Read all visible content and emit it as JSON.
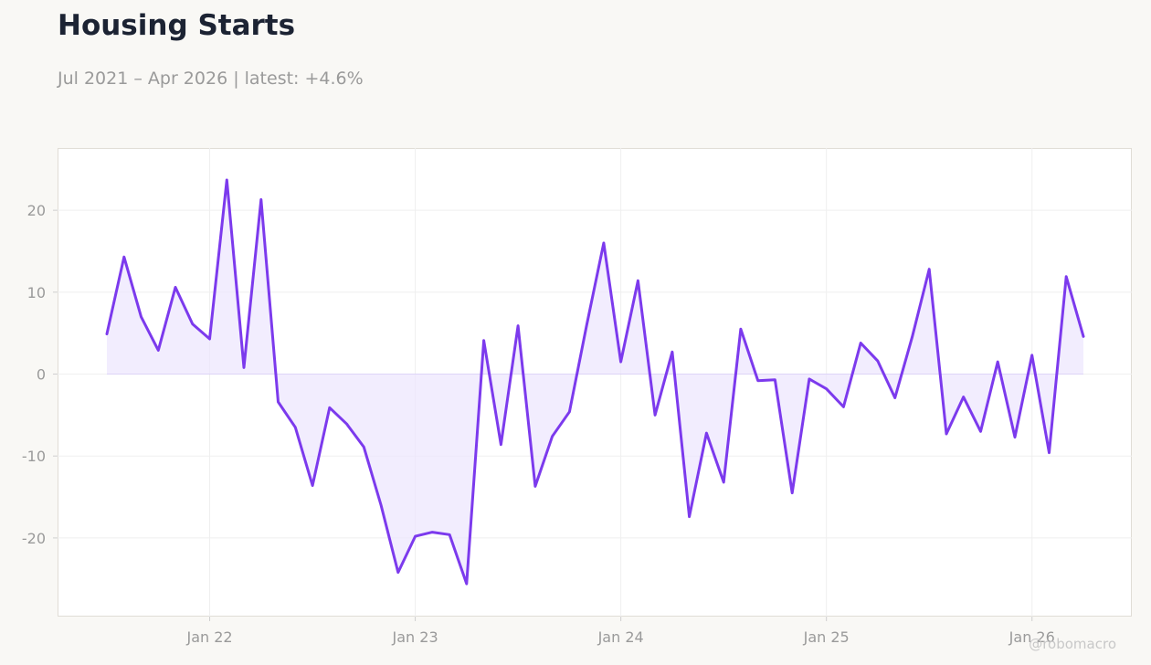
{
  "header": {
    "title": "Housing Starts",
    "subtitle": "Jul 2021 – Apr 2026 | latest: +4.6%"
  },
  "watermark": "@robomacro",
  "colors": {
    "line": "#7c3aed",
    "fill": "#ede5fd",
    "background": "#f9f8f5",
    "plot_background": "#ffffff"
  },
  "chart_data": {
    "type": "area",
    "title": "Housing Starts",
    "xlabel": "",
    "ylabel": "",
    "x_start": "2021-07",
    "x_end": "2026-04",
    "x_ticks": [
      {
        "label": "Jan 22",
        "date": "2022-01"
      },
      {
        "label": "Jan 23",
        "date": "2023-01"
      },
      {
        "label": "Jan 24",
        "date": "2024-01"
      },
      {
        "label": "Jan 25",
        "date": "2025-01"
      },
      {
        "label": "Jan 26",
        "date": "2026-01"
      }
    ],
    "y_ticks": [
      {
        "label": "20",
        "value": 20
      },
      {
        "label": "10",
        "value": 10
      },
      {
        "label": "0",
        "value": 0
      },
      {
        "label": "-10",
        "value": -10
      },
      {
        "label": "-20",
        "value": -20
      }
    ],
    "ylim": [
      -29.6,
      27.6
    ],
    "grid": true,
    "legend": "none",
    "series": [
      {
        "x": [
          "2021-07",
          "2021-08",
          "2021-09",
          "2021-10",
          "2021-11",
          "2021-12",
          "2022-01",
          "2022-02",
          "2022-03",
          "2022-04",
          "2022-05",
          "2022-06",
          "2022-07",
          "2022-08",
          "2022-09",
          "2022-10",
          "2022-11",
          "2022-12",
          "2023-01",
          "2023-02",
          "2023-03",
          "2023-04",
          "2023-05",
          "2023-06",
          "2023-07",
          "2023-08",
          "2023-09",
          "2023-10",
          "2023-11",
          "2023-12",
          "2024-01",
          "2024-02",
          "2024-03",
          "2024-04",
          "2024-05",
          "2024-06",
          "2024-07",
          "2024-08",
          "2024-09",
          "2024-10",
          "2024-11",
          "2024-12",
          "2025-01",
          "2025-02",
          "2025-03",
          "2025-04",
          "2025-05",
          "2025-06",
          "2025-07",
          "2025-08",
          "2025-09",
          "2025-10",
          "2025-11",
          "2025-12",
          "2026-01",
          "2026-02",
          "2026-03",
          "2026-04"
        ],
        "values": [
          4.9,
          14.3,
          7.0,
          2.9,
          10.6,
          6.1,
          4.3,
          23.7,
          0.8,
          21.3,
          -3.4,
          -6.5,
          -13.6,
          -4.1,
          -6.1,
          -8.9,
          -16.0,
          -24.2,
          -19.8,
          -19.3,
          -19.6,
          -25.6,
          4.1,
          -8.6,
          5.9,
          -13.7,
          -7.6,
          -4.6,
          5.9,
          16.0,
          1.5,
          11.4,
          -5.0,
          2.7,
          -17.4,
          -7.2,
          -13.2,
          5.5,
          -0.8,
          -0.7,
          -14.5,
          -0.6,
          -1.8,
          -4.0,
          3.8,
          1.6,
          -2.9,
          4.5,
          12.8,
          -7.3,
          -2.8,
          -7.0,
          1.5,
          -7.7,
          2.3,
          -9.6,
          11.9,
          4.6
        ]
      }
    ]
  }
}
